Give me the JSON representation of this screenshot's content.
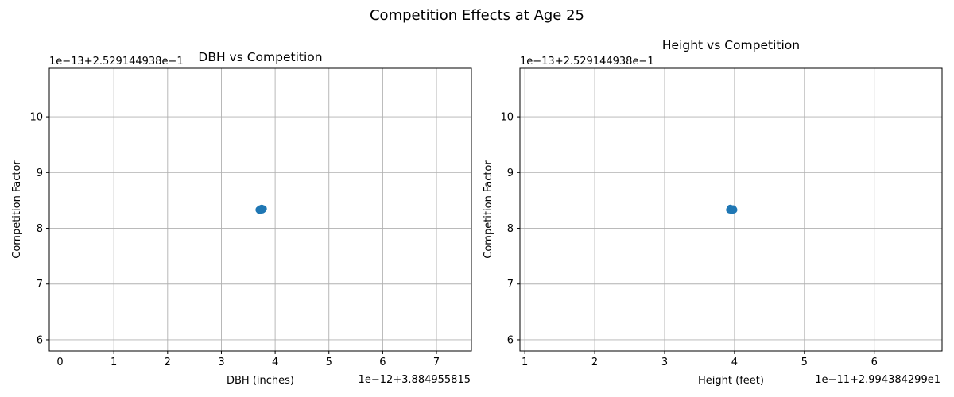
{
  "suptitle": "Competition Effects at Age 25",
  "colors": {
    "marker": "#1f77b4",
    "grid": "#b0b0b0"
  },
  "chart_data": [
    {
      "type": "scatter",
      "title": "DBH vs Competition",
      "xlabel": "DBH (inches)",
      "ylabel": "Competition Factor",
      "x_offset_text": "1e−12+3.884955815",
      "y_offset_text": "1e−13+2.529144938e−1",
      "xlim": [
        -0.2,
        7.65
      ],
      "ylim": [
        5.8,
        10.87
      ],
      "xticks": [
        0,
        1,
        2,
        3,
        4,
        5,
        6,
        7
      ],
      "xtick_labels": [
        "0",
        "1",
        "2",
        "3",
        "4",
        "5",
        "6",
        "7"
      ],
      "yticks": [
        6,
        7,
        8,
        9,
        10
      ],
      "ytick_labels": [
        "6",
        "7",
        "8",
        "9",
        "10"
      ],
      "grid": true,
      "points": [
        {
          "x": 3.7,
          "y": 8.33
        },
        {
          "x": 3.72,
          "y": 8.35
        },
        {
          "x": 3.74,
          "y": 8.34
        },
        {
          "x": 3.76,
          "y": 8.33
        },
        {
          "x": 3.78,
          "y": 8.35
        },
        {
          "x": 3.71,
          "y": 8.32
        },
        {
          "x": 3.75,
          "y": 8.36
        },
        {
          "x": 3.73,
          "y": 8.33
        },
        {
          "x": 3.77,
          "y": 8.34
        }
      ]
    },
    {
      "type": "scatter",
      "title": "Height vs Competition",
      "xlabel": "Height (feet)",
      "ylabel": "Competition Factor",
      "x_offset_text": "1e−11+2.994384299e1",
      "y_offset_text": "1e−13+2.529144938e−1",
      "xlim": [
        0.93,
        6.97
      ],
      "ylim": [
        5.8,
        10.87
      ],
      "xticks": [
        1,
        2,
        3,
        4,
        5,
        6
      ],
      "xtick_labels": [
        "1",
        "2",
        "3",
        "4",
        "5",
        "6"
      ],
      "yticks": [
        6,
        7,
        8,
        9,
        10
      ],
      "ytick_labels": [
        "6",
        "7",
        "8",
        "9",
        "10"
      ],
      "grid": true,
      "points": [
        {
          "x": 3.93,
          "y": 8.33
        },
        {
          "x": 3.95,
          "y": 8.35
        },
        {
          "x": 3.97,
          "y": 8.34
        },
        {
          "x": 3.99,
          "y": 8.33
        },
        {
          "x": 3.94,
          "y": 8.36
        },
        {
          "x": 3.96,
          "y": 8.32
        },
        {
          "x": 3.98,
          "y": 8.35
        }
      ]
    }
  ]
}
